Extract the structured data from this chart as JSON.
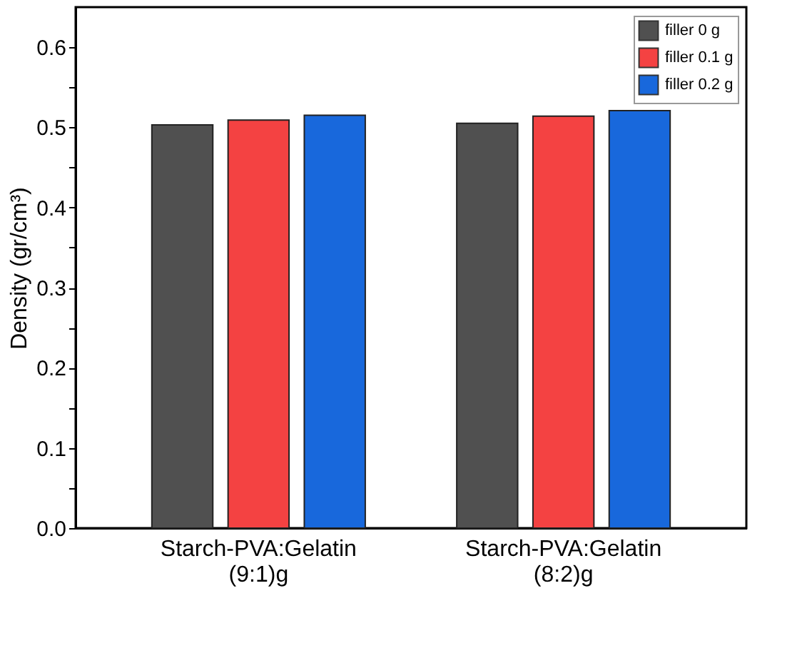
{
  "chart_data": {
    "type": "bar",
    "ylabel": "Density (gr/cm³)",
    "categories": [
      "Starch-PVA:Gelatin (9:1)g",
      "Starch-PVA:Gelatin (8:2)g"
    ],
    "series": [
      {
        "name": "filler 0 g",
        "color": "#505050",
        "values": [
          0.503,
          0.505
        ]
      },
      {
        "name": "filler 0.1 g",
        "color": "#f44242",
        "values": [
          0.509,
          0.514
        ]
      },
      {
        "name": "filler 0.2 g",
        "color": "#1868dc",
        "values": [
          0.515,
          0.521
        ]
      }
    ],
    "ylim": [
      0,
      0.65
    ],
    "yticks": [
      {
        "value": 0,
        "label": "0.0"
      },
      {
        "value": 0.05,
        "label": null
      },
      0.1,
      {
        "value": 0.15,
        "label": null
      },
      0.2,
      {
        "value": 0.25,
        "label": null
      },
      0.3,
      {
        "value": 0.35,
        "label": null
      },
      0.4,
      {
        "value": 0.45,
        "label": null
      },
      0.5,
      {
        "value": 0.55,
        "label": null
      },
      0.6
    ],
    "legend": "top right",
    "grid": false
  }
}
